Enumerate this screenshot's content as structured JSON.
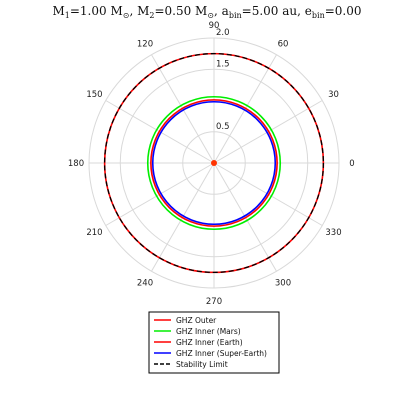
{
  "chart_data": {
    "type": "polar-line",
    "title": {
      "m1_label": "M",
      "m1_sub": "1",
      "m1_value": "=1.00 M",
      "m1_unit_sub": "⊙",
      "m2_label": ", M",
      "m2_sub": "2",
      "m2_value": "=0.50 M",
      "m2_unit_sub": "⊙",
      "a_label": ", a",
      "a_sub": "bin",
      "a_value": "=5.00 au",
      "e_label": ", e",
      "e_sub": "bin",
      "e_value": "=0.00"
    },
    "rlim": [
      0,
      2.0
    ],
    "r_ticks": [
      0.5,
      1.0,
      1.5,
      2.0
    ],
    "r_tick_labels": [
      "0.5",
      "",
      "1.5",
      "2.0"
    ],
    "theta_ticks_deg": [
      0,
      30,
      60,
      90,
      120,
      150,
      180,
      210,
      240,
      270,
      300,
      330
    ],
    "theta_tick_labels": [
      "0",
      "30",
      "60",
      "90",
      "120",
      "150",
      "180",
      "210",
      "240",
      "270",
      "300",
      "330"
    ],
    "grid": true,
    "series": [
      {
        "name": "GHZ Outer",
        "color": "#ff0000",
        "style": "solid",
        "r": 1.75
      },
      {
        "name": "GHZ Inner (Mars)",
        "color": "#00ee00",
        "style": "solid",
        "r": 1.06
      },
      {
        "name": "GHZ Inner (Earth)",
        "color": "#ff0000",
        "style": "solid",
        "r": 1.01
      },
      {
        "name": "GHZ Inner (Super-Earth)",
        "color": "#0000ff",
        "style": "solid",
        "r": 0.98
      },
      {
        "name": "Stability Limit",
        "color": "#000000",
        "style": "dashed",
        "r": 1.75
      }
    ],
    "markers": [
      {
        "name": "",
        "color": "#ff3300",
        "r": 0,
        "theta_deg": 0
      }
    ],
    "legend_position": "bottom"
  }
}
